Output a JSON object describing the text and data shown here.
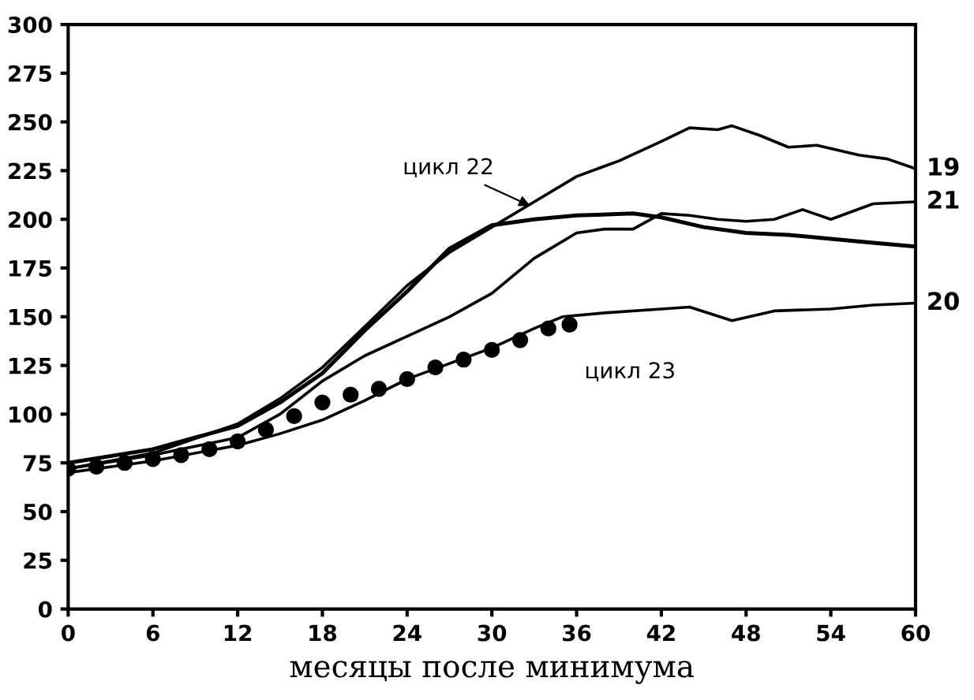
{
  "chart_data": {
    "type": "line",
    "xlabel": "месяцы после минимума",
    "xlim": [
      0,
      60
    ],
    "xticks": [
      0,
      6,
      12,
      18,
      24,
      30,
      36,
      42,
      48,
      54,
      60
    ],
    "ylim": [
      0,
      300
    ],
    "yticks": [
      0,
      25,
      50,
      75,
      100,
      125,
      150,
      175,
      200,
      225,
      250,
      275,
      300
    ],
    "grid": false,
    "legend": false,
    "line_style": "solid",
    "marker": "none",
    "series": [
      {
        "name": "19",
        "color": "#000000",
        "x": [
          0,
          6,
          12,
          15,
          18,
          21,
          24,
          27,
          30,
          33,
          36,
          39,
          42,
          44,
          46,
          47,
          49,
          51,
          53,
          56,
          58,
          60
        ],
        "values": [
          72,
          80,
          95,
          108,
          124,
          145,
          166,
          183,
          196,
          209,
          222,
          230,
          240,
          247,
          246,
          248,
          243,
          237,
          238,
          233,
          231,
          226
        ]
      },
      {
        "name": "21",
        "color": "#000000",
        "x": [
          0,
          6,
          12,
          15,
          18,
          21,
          24,
          27,
          30,
          33,
          36,
          38,
          40,
          42,
          44,
          46,
          48,
          50,
          52,
          54,
          57,
          60
        ],
        "values": [
          72,
          79,
          88,
          100,
          117,
          130,
          140,
          150,
          162,
          180,
          193,
          195,
          195,
          203,
          202,
          200,
          199,
          200,
          205,
          200,
          208,
          209
        ]
      },
      {
        "color": "#000000",
        "x": [
          0,
          6,
          12,
          15,
          18,
          21,
          24,
          27,
          30,
          33,
          36,
          40,
          42,
          45,
          48,
          51,
          54,
          57,
          60
        ],
        "values": [
          75,
          82,
          94,
          106,
          121,
          143,
          163,
          185,
          197,
          200,
          202,
          203,
          201,
          196,
          193,
          192,
          190,
          188,
          186
        ]
      },
      {
        "name": "20",
        "color": "#000000",
        "x": [
          0,
          6,
          12,
          15,
          18,
          21,
          24,
          27,
          30,
          33,
          35,
          38,
          42,
          44,
          47,
          50,
          54,
          57,
          60
        ],
        "values": [
          70,
          76,
          84,
          90,
          97,
          107,
          118,
          126,
          134,
          144,
          150,
          152,
          154,
          155,
          148,
          153,
          154,
          156,
          157
        ]
      },
      {
        "type": "scatter",
        "marker": "circle",
        "color": "#000000",
        "x": [
          0,
          2,
          4,
          6,
          8,
          10,
          12,
          14,
          16,
          18,
          20,
          22,
          24,
          26,
          28,
          30,
          32,
          34,
          35.5
        ],
        "values": [
          72,
          73,
          75,
          77,
          79,
          82,
          86,
          92,
          99,
          106,
          110,
          113,
          118,
          124,
          128,
          133,
          138,
          144,
          146
        ]
      }
    ],
    "annotations": [
      {
        "text": "цикл 22",
        "x": 33,
        "y": 206
      },
      {
        "text": "цикл 23",
        "x": 35,
        "y": 144
      }
    ]
  }
}
